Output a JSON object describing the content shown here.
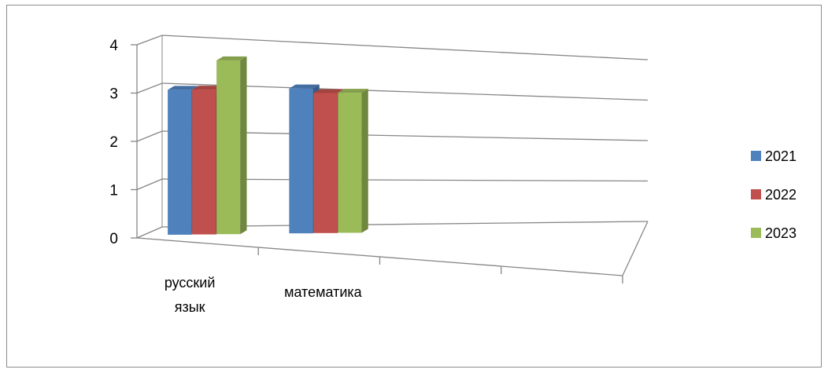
{
  "chart_data": {
    "type": "bar",
    "variant": "3d-clustered-column",
    "categories": [
      "русский язык",
      "математика"
    ],
    "category_lines": [
      [
        "русский",
        "язык"
      ],
      [
        "математика"
      ]
    ],
    "series": [
      {
        "name": "2021",
        "values": [
          3.0,
          3.0
        ],
        "color": "#4F81BD"
      },
      {
        "name": "2022",
        "values": [
          3.0,
          2.9
        ],
        "color": "#C0504D"
      },
      {
        "name": "2023",
        "values": [
          3.6,
          2.9
        ],
        "color": "#9BBB59"
      }
    ],
    "ylim": [
      0,
      4
    ],
    "yticks": [
      "0",
      "1",
      "2",
      "3",
      "4"
    ],
    "grid": true,
    "legend_position": "right",
    "empty_category_slots": 2
  }
}
